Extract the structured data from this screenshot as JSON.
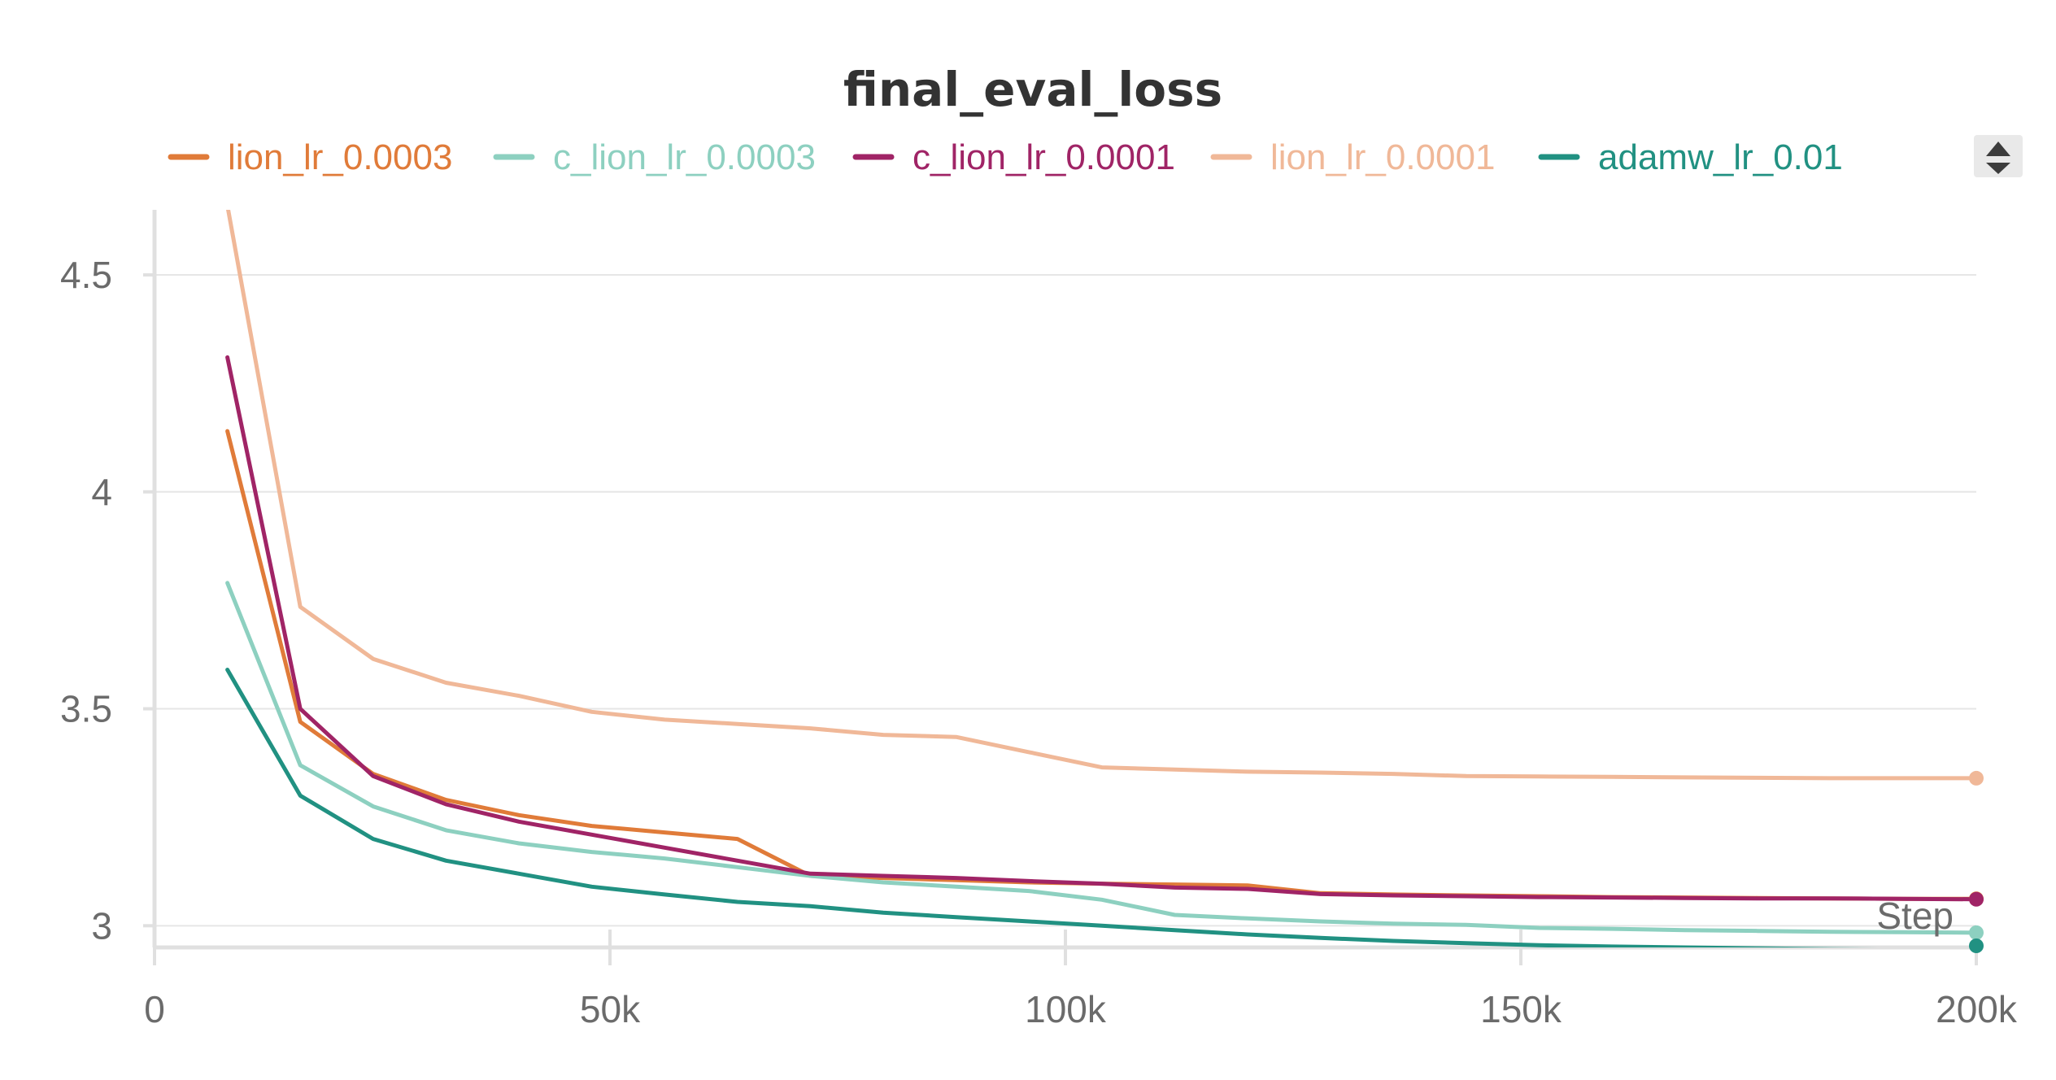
{
  "chart_data": {
    "type": "line",
    "title": "final_eval_loss",
    "xlabel": "Step",
    "ylabel": "",
    "xlim": [
      0,
      200000
    ],
    "ylim": [
      2.95,
      4.65
    ],
    "x_ticks": [
      0,
      50000,
      100000,
      150000,
      200000
    ],
    "x_tick_labels": [
      "0",
      "50k",
      "100k",
      "150k",
      "200k"
    ],
    "y_ticks": [
      3,
      3.5,
      4,
      4.5
    ],
    "y_tick_labels": [
      "3",
      "3.5",
      "4",
      "4.5"
    ],
    "grid": true,
    "legend_position": "top",
    "x": [
      8000,
      16000,
      24000,
      32000,
      40000,
      48000,
      56000,
      64000,
      72000,
      80000,
      88000,
      96000,
      104000,
      112000,
      120000,
      128000,
      136000,
      144000,
      152000,
      160000,
      168000,
      176000,
      184000,
      192000,
      200000
    ],
    "series": [
      {
        "name": "lion_lr_0.0003",
        "color": "#e07b39",
        "values": [
          4.14,
          3.47,
          3.35,
          3.29,
          3.255,
          3.23,
          3.215,
          3.2,
          3.115,
          3.11,
          3.105,
          3.1,
          3.097,
          3.095,
          3.093,
          3.075,
          3.072,
          3.07,
          3.068,
          3.066,
          3.065,
          3.064,
          3.063,
          3.062,
          3.062
        ]
      },
      {
        "name": "c_lion_lr_0.0003",
        "color": "#8dd0c0",
        "values": [
          3.79,
          3.37,
          3.275,
          3.22,
          3.19,
          3.17,
          3.155,
          3.135,
          3.115,
          3.1,
          3.09,
          3.08,
          3.06,
          3.025,
          3.017,
          3.01,
          3.005,
          3.002,
          2.995,
          2.993,
          2.99,
          2.988,
          2.986,
          2.985,
          2.984
        ]
      },
      {
        "name": "c_lion_lr_0.0001",
        "color": "#a02466",
        "values": [
          4.31,
          3.5,
          3.345,
          3.28,
          3.24,
          3.21,
          3.18,
          3.15,
          3.12,
          3.115,
          3.11,
          3.103,
          3.097,
          3.088,
          3.085,
          3.073,
          3.07,
          3.068,
          3.066,
          3.065,
          3.064,
          3.063,
          3.063,
          3.062,
          3.061
        ]
      },
      {
        "name": "lion_lr_0.0001",
        "color": "#f0b898",
        "values": [
          4.66,
          3.735,
          3.615,
          3.56,
          3.53,
          3.493,
          3.475,
          3.465,
          3.455,
          3.44,
          3.435,
          3.4,
          3.365,
          3.36,
          3.355,
          3.353,
          3.35,
          3.345,
          3.344,
          3.343,
          3.342,
          3.341,
          3.34,
          3.34,
          3.34
        ]
      },
      {
        "name": "adamw_lr_0.01",
        "color": "#219182",
        "values": [
          3.59,
          3.3,
          3.2,
          3.15,
          3.12,
          3.09,
          3.072,
          3.055,
          3.045,
          3.03,
          3.02,
          3.01,
          3.0,
          2.99,
          2.98,
          2.972,
          2.965,
          2.96,
          2.955,
          2.952,
          2.95,
          2.948,
          2.946,
          2.945,
          2.944
        ]
      }
    ]
  }
}
